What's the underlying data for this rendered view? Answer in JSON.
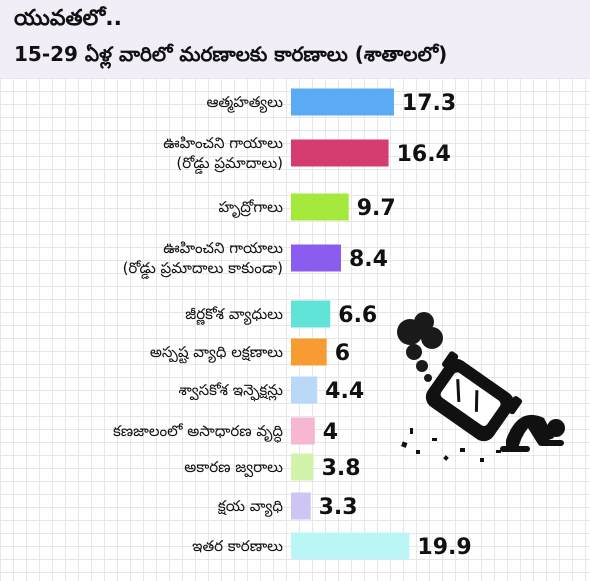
{
  "header": {
    "title": "యువతలో..",
    "subtitle": "15-29 ఏళ్ల వారిలో మరణాలకు కారణాలు (శాతాలలో)"
  },
  "chart_data": {
    "type": "bar",
    "orientation": "horizontal",
    "title": "15-29 ఏళ్ల వారిలో మరణాలకు కారణాలు (శాతాలలో)",
    "categories": [
      [
        "ఆత్మహత్యలు"
      ],
      [
        "ఊహించని గాయాలు",
        "(రోడ్డు ప్రమాదాలు)"
      ],
      [
        "హృద్రోగాలు"
      ],
      [
        "ఊహించని గాయాలు",
        "(రోడ్డు ప్రమాదాలు కాకుండా)"
      ],
      [
        "జీర్ణకోశ వ్యాధులు"
      ],
      [
        "అస్పష్ట వ్యాధి లక్షణాలు"
      ],
      [
        "శ్వాసకోశ ఇన్ఫెక్షన్లు"
      ],
      [
        "కణజాలంలో అసాధారణ వృద్ధి"
      ],
      [
        "అకారణ జ్వరాలు"
      ],
      [
        "క్షయ వ్యాధి"
      ],
      [
        "ఇతర కారణాలు"
      ]
    ],
    "values": [
      17.3,
      16.4,
      9.7,
      8.4,
      6.6,
      6,
      4.4,
      4,
      3.8,
      3.3,
      19.9
    ],
    "value_labels": [
      "17.3",
      "16.4",
      "9.7",
      "8.4",
      "6.6",
      "6",
      "4.4",
      "4",
      "3.8",
      "3.3",
      "19.9"
    ],
    "colors": [
      "#5aaaf5",
      "#d43c70",
      "#a4e93c",
      "#8a5cf0",
      "#62e3d8",
      "#f79c32",
      "#b9d9f7",
      "#f7b6d2",
      "#d1f3ab",
      "#cfc5f4",
      "#b9f6f5"
    ],
    "grid": true
  }
}
